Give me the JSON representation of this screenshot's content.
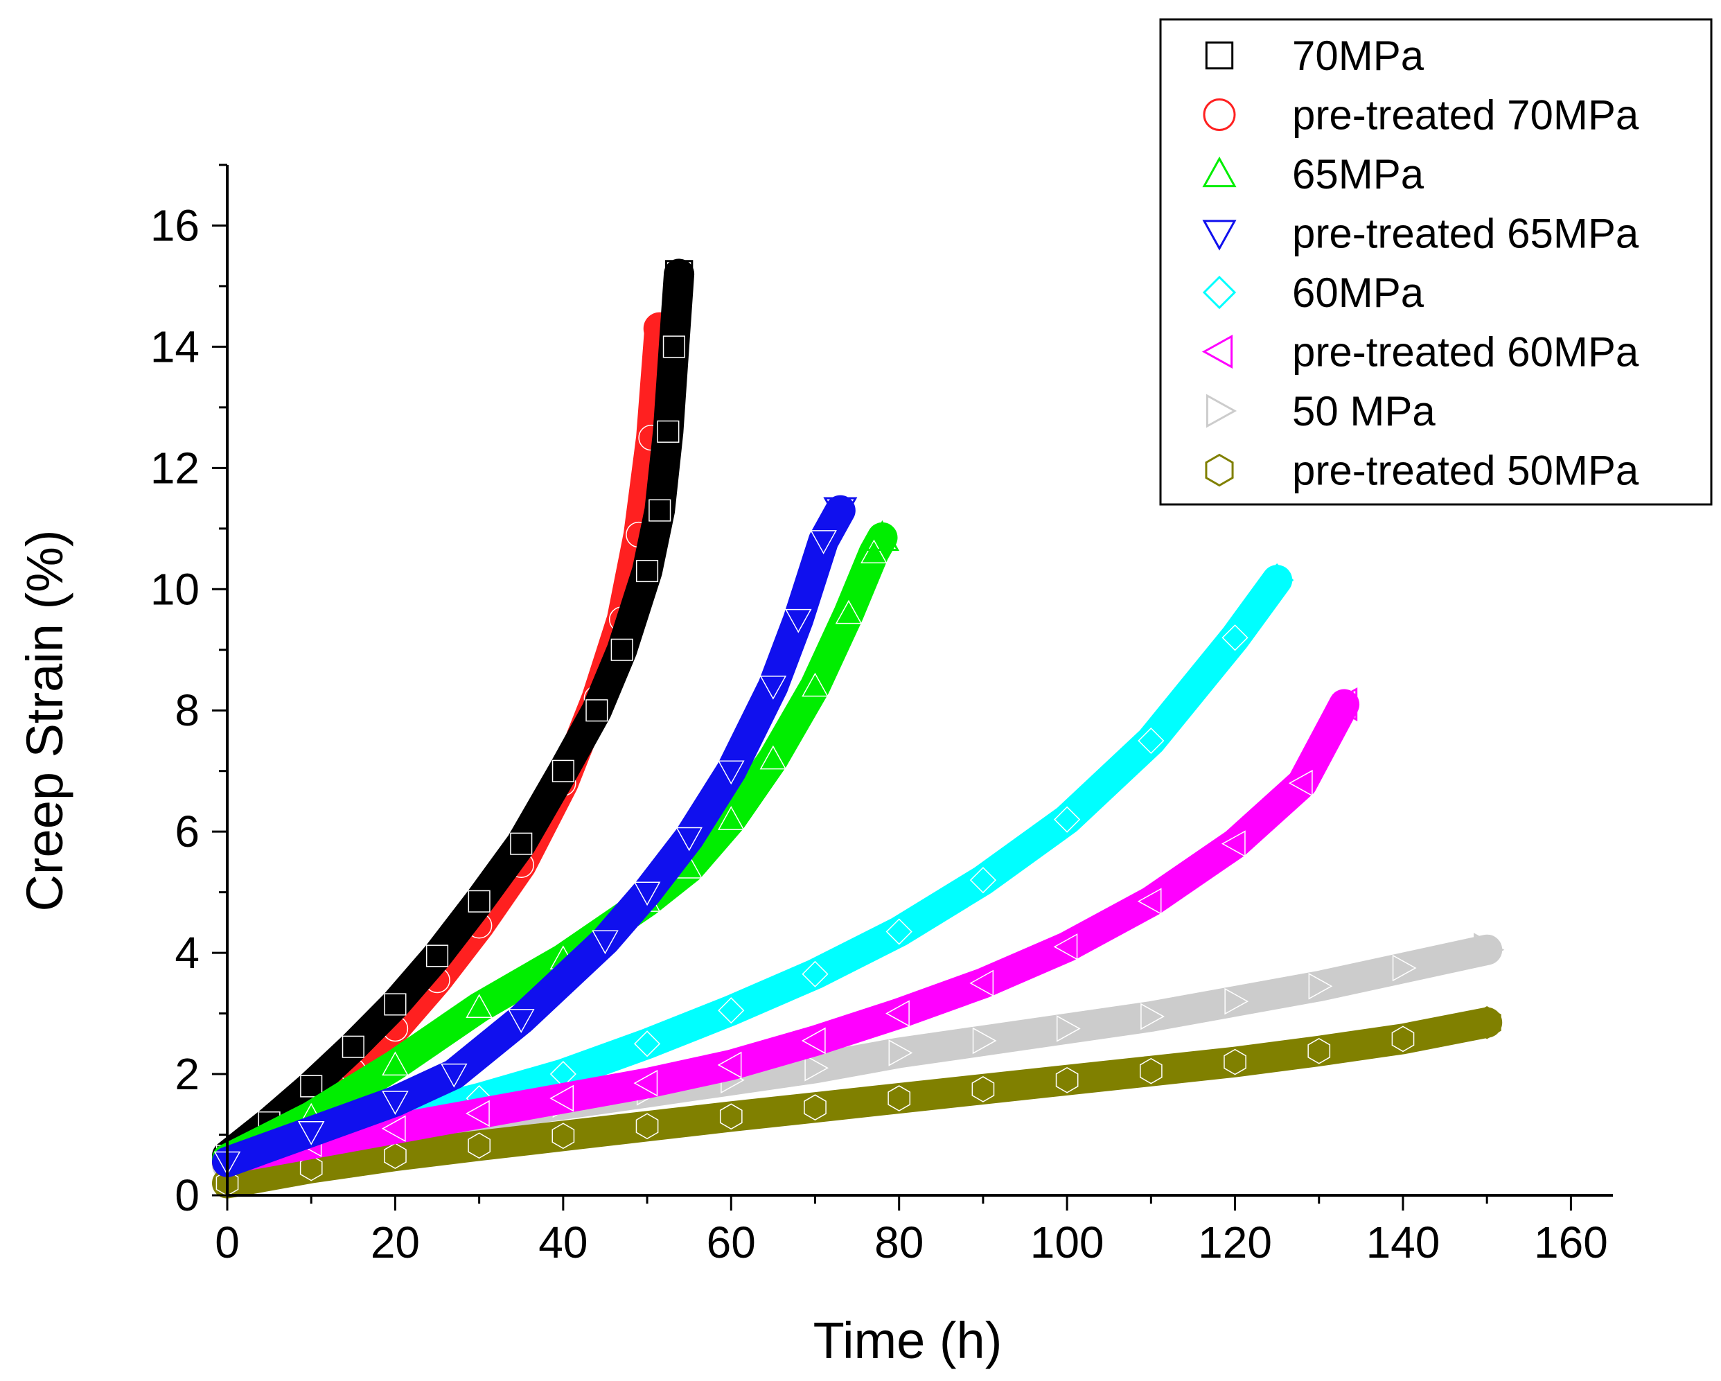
{
  "chart_data": {
    "type": "scatter",
    "title": "",
    "xlabel": "Time (h)",
    "ylabel": "Creep Strain (%)",
    "xlim": [
      0,
      165
    ],
    "ylim": [
      0,
      17
    ],
    "xticks": [
      0,
      20,
      40,
      60,
      80,
      100,
      120,
      140,
      160
    ],
    "yticks": [
      0,
      2,
      4,
      6,
      8,
      10,
      12,
      14,
      16
    ],
    "legend_position": "top-right",
    "series": [
      {
        "name": "70MPa",
        "marker": "square",
        "color": "#000000",
        "x": [
          0,
          5,
          10,
          15,
          20,
          25,
          30,
          35,
          40,
          44,
          47,
          50,
          51.5,
          52.5,
          53.2,
          53.8
        ],
        "y": [
          0.65,
          1.2,
          1.8,
          2.45,
          3.15,
          3.95,
          4.85,
          5.8,
          7.0,
          8.0,
          9.0,
          10.3,
          11.3,
          12.6,
          14.0,
          15.2
        ]
      },
      {
        "name": "pre-treated 70MPa",
        "marker": "circle",
        "color": "#ff2020",
        "x": [
          0,
          5,
          10,
          15,
          20,
          25,
          30,
          35,
          40,
          44,
          47,
          49,
          50.5,
          51.5
        ],
        "y": [
          0.55,
          0.95,
          1.45,
          2.05,
          2.75,
          3.55,
          4.45,
          5.45,
          6.8,
          8.2,
          9.5,
          10.9,
          12.5,
          14.3
        ]
      },
      {
        "name": "65MPa",
        "marker": "triangle-up",
        "color": "#00ee00",
        "x": [
          0,
          10,
          20,
          30,
          40,
          50,
          55,
          60,
          65,
          70,
          74,
          77,
          78
        ],
        "y": [
          0.6,
          1.3,
          2.15,
          3.1,
          3.9,
          4.85,
          5.4,
          6.2,
          7.2,
          8.4,
          9.6,
          10.6,
          10.85
        ]
      },
      {
        "name": "pre-treated 65MPa",
        "marker": "triangle-down",
        "color": "#1010ee",
        "x": [
          0,
          10,
          20,
          27,
          35,
          45,
          50,
          55,
          60,
          65,
          68,
          71,
          73
        ],
        "y": [
          0.55,
          1.05,
          1.55,
          2.0,
          2.9,
          4.2,
          5.0,
          5.9,
          7.0,
          8.4,
          9.5,
          10.8,
          11.3
        ]
      },
      {
        "name": "60MPa",
        "marker": "diamond",
        "color": "#00ffff",
        "x": [
          0,
          10,
          20,
          30,
          40,
          50,
          60,
          70,
          80,
          90,
          100,
          110,
          120,
          125
        ],
        "y": [
          0.6,
          0.95,
          1.25,
          1.6,
          2.0,
          2.5,
          3.05,
          3.65,
          4.35,
          5.2,
          6.2,
          7.5,
          9.2,
          10.15
        ]
      },
      {
        "name": "pre-treated 60MPa",
        "marker": "triangle-left",
        "color": "#ff00ff",
        "x": [
          0,
          10,
          20,
          30,
          40,
          50,
          60,
          70,
          80,
          90,
          100,
          110,
          120,
          128,
          133
        ],
        "y": [
          0.6,
          0.85,
          1.1,
          1.35,
          1.6,
          1.85,
          2.15,
          2.55,
          3.0,
          3.5,
          4.1,
          4.85,
          5.8,
          6.8,
          8.1
        ]
      },
      {
        "name": "50 MPa",
        "marker": "triangle-right",
        "color": "#cccccc",
        "x": [
          0,
          10,
          20,
          30,
          40,
          50,
          60,
          70,
          80,
          90,
          100,
          110,
          120,
          130,
          140,
          150
        ],
        "y": [
          0.5,
          0.85,
          1.1,
          1.3,
          1.5,
          1.7,
          1.9,
          2.1,
          2.35,
          2.55,
          2.75,
          2.95,
          3.2,
          3.45,
          3.75,
          4.05
        ]
      },
      {
        "name": "pre-treated 50MPa",
        "marker": "hexagon",
        "color": "#808000",
        "x": [
          0,
          10,
          20,
          30,
          40,
          50,
          60,
          70,
          80,
          90,
          100,
          110,
          120,
          130,
          140,
          150
        ],
        "y": [
          0.2,
          0.45,
          0.65,
          0.82,
          0.98,
          1.14,
          1.3,
          1.45,
          1.6,
          1.75,
          1.9,
          2.05,
          2.2,
          2.38,
          2.58,
          2.85
        ]
      }
    ]
  }
}
